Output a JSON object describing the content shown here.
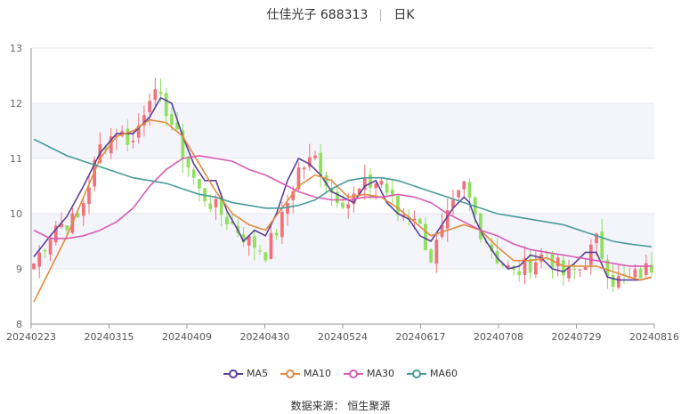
{
  "header": {
    "stock_name": "仕佳光子 688313",
    "period": "日K"
  },
  "footer": {
    "source": "数据来源： 恒生聚源"
  },
  "chart_data": {
    "type": "candlestick",
    "ylim": [
      8,
      13
    ],
    "yticks": [
      "8",
      "9",
      "10",
      "11",
      "12",
      "13"
    ],
    "xtick_labels": [
      "20240223",
      "20240315",
      "20240409",
      "20240430",
      "20240524",
      "20240617",
      "20240708",
      "20240729",
      "20240816"
    ],
    "up_color": "#f0717a",
    "down_color": "#8fe05a",
    "close_anchors": [
      [
        0,
        9.1
      ],
      [
        4,
        9.8
      ],
      [
        8,
        9.9
      ],
      [
        12,
        11.2
      ],
      [
        15,
        11.5
      ],
      [
        18,
        11.3
      ],
      [
        21,
        12.2
      ],
      [
        24,
        11.9
      ],
      [
        27,
        11.1
      ],
      [
        30,
        10.4
      ],
      [
        33,
        10.1
      ],
      [
        36,
        9.8
      ],
      [
        39,
        9.5
      ],
      [
        42,
        9.3
      ],
      [
        45,
        9.9
      ],
      [
        48,
        10.8
      ],
      [
        51,
        11.0
      ],
      [
        54,
        10.4
      ],
      [
        57,
        10.2
      ],
      [
        60,
        10.5
      ],
      [
        63,
        10.6
      ],
      [
        66,
        10.0
      ],
      [
        69,
        10.0
      ],
      [
        72,
        9.2
      ],
      [
        75,
        9.9
      ],
      [
        78,
        10.5
      ],
      [
        81,
        9.7
      ],
      [
        84,
        9.2
      ],
      [
        87,
        8.9
      ],
      [
        90,
        9.1
      ],
      [
        93,
        9.3
      ],
      [
        96,
        8.9
      ],
      [
        99,
        9.0
      ],
      [
        102,
        9.5
      ],
      [
        105,
        8.8
      ],
      [
        108,
        8.8
      ],
      [
        112,
        9.05
      ]
    ],
    "series": [
      {
        "name": "MA5",
        "color": "#5a3f9a",
        "points": [
          [
            0,
            9.22
          ],
          [
            3,
            9.6
          ],
          [
            6,
            9.95
          ],
          [
            9,
            10.5
          ],
          [
            12,
            11.1
          ],
          [
            15,
            11.45
          ],
          [
            18,
            11.45
          ],
          [
            21,
            11.75
          ],
          [
            23,
            12.1
          ],
          [
            25,
            12.0
          ],
          [
            27,
            11.4
          ],
          [
            29,
            10.9
          ],
          [
            31,
            10.6
          ],
          [
            33,
            10.6
          ],
          [
            35,
            10.05
          ],
          [
            37,
            9.7
          ],
          [
            38,
            9.5
          ],
          [
            40,
            9.7
          ],
          [
            42,
            9.6
          ],
          [
            44,
            10.0
          ],
          [
            46,
            10.6
          ],
          [
            48,
            11.0
          ],
          [
            50,
            10.9
          ],
          [
            52,
            10.7
          ],
          [
            54,
            10.4
          ],
          [
            56,
            10.3
          ],
          [
            58,
            10.2
          ],
          [
            60,
            10.5
          ],
          [
            62,
            10.6
          ],
          [
            64,
            10.2
          ],
          [
            66,
            10.0
          ],
          [
            68,
            9.9
          ],
          [
            70,
            9.6
          ],
          [
            72,
            9.5
          ],
          [
            74,
            9.8
          ],
          [
            76,
            10.1
          ],
          [
            78,
            10.3
          ],
          [
            79,
            10.2
          ],
          [
            80,
            9.9
          ],
          [
            82,
            9.5
          ],
          [
            84,
            9.2
          ],
          [
            86,
            9.0
          ],
          [
            88,
            9.05
          ],
          [
            90,
            9.25
          ],
          [
            92,
            9.2
          ],
          [
            94,
            9.0
          ],
          [
            96,
            8.95
          ],
          [
            98,
            9.1
          ],
          [
            100,
            9.3
          ],
          [
            102,
            9.3
          ],
          [
            104,
            8.85
          ],
          [
            106,
            8.8
          ],
          [
            108,
            8.8
          ],
          [
            110,
            8.8
          ],
          [
            112,
            8.85
          ]
        ]
      },
      {
        "name": "MA10",
        "color": "#e38a3f",
        "points": [
          [
            0,
            8.4
          ],
          [
            2,
            8.8
          ],
          [
            4,
            9.2
          ],
          [
            6,
            9.6
          ],
          [
            9,
            10.3
          ],
          [
            12,
            11.0
          ],
          [
            15,
            11.4
          ],
          [
            18,
            11.5
          ],
          [
            21,
            11.7
          ],
          [
            24,
            11.65
          ],
          [
            27,
            11.4
          ],
          [
            30,
            10.9
          ],
          [
            33,
            10.4
          ],
          [
            36,
            10.0
          ],
          [
            39,
            9.8
          ],
          [
            42,
            9.7
          ],
          [
            45,
            10.1
          ],
          [
            48,
            10.5
          ],
          [
            51,
            10.7
          ],
          [
            54,
            10.6
          ],
          [
            57,
            10.3
          ],
          [
            60,
            10.35
          ],
          [
            63,
            10.3
          ],
          [
            66,
            10.1
          ],
          [
            69,
            9.85
          ],
          [
            72,
            9.6
          ],
          [
            75,
            9.7
          ],
          [
            78,
            9.8
          ],
          [
            81,
            9.7
          ],
          [
            84,
            9.4
          ],
          [
            87,
            9.15
          ],
          [
            90,
            9.15
          ],
          [
            93,
            9.2
          ],
          [
            96,
            9.05
          ],
          [
            99,
            9.05
          ],
          [
            102,
            9.05
          ],
          [
            105,
            8.95
          ],
          [
            108,
            8.85
          ],
          [
            110,
            8.8
          ],
          [
            112,
            8.85
          ]
        ]
      },
      {
        "name": "MA30",
        "color": "#d95cb3",
        "points": [
          [
            0,
            9.7
          ],
          [
            3,
            9.55
          ],
          [
            6,
            9.55
          ],
          [
            9,
            9.6
          ],
          [
            12,
            9.7
          ],
          [
            15,
            9.85
          ],
          [
            18,
            10.1
          ],
          [
            21,
            10.5
          ],
          [
            24,
            10.8
          ],
          [
            27,
            11.0
          ],
          [
            30,
            11.05
          ],
          [
            33,
            11.0
          ],
          [
            36,
            10.95
          ],
          [
            39,
            10.8
          ],
          [
            42,
            10.7
          ],
          [
            45,
            10.55
          ],
          [
            48,
            10.4
          ],
          [
            51,
            10.3
          ],
          [
            54,
            10.25
          ],
          [
            57,
            10.25
          ],
          [
            60,
            10.3
          ],
          [
            63,
            10.3
          ],
          [
            66,
            10.35
          ],
          [
            69,
            10.3
          ],
          [
            72,
            10.2
          ],
          [
            75,
            10.0
          ],
          [
            78,
            9.85
          ],
          [
            81,
            9.7
          ],
          [
            84,
            9.6
          ],
          [
            87,
            9.45
          ],
          [
            90,
            9.35
          ],
          [
            93,
            9.3
          ],
          [
            96,
            9.25
          ],
          [
            99,
            9.2
          ],
          [
            102,
            9.15
          ],
          [
            105,
            9.1
          ],
          [
            108,
            9.05
          ],
          [
            112,
            9.05
          ]
        ]
      },
      {
        "name": "MA60",
        "color": "#4a9a9a",
        "points": [
          [
            0,
            11.35
          ],
          [
            3,
            11.2
          ],
          [
            6,
            11.05
          ],
          [
            9,
            10.95
          ],
          [
            12,
            10.85
          ],
          [
            15,
            10.75
          ],
          [
            18,
            10.65
          ],
          [
            21,
            10.6
          ],
          [
            24,
            10.55
          ],
          [
            27,
            10.45
          ],
          [
            30,
            10.35
          ],
          [
            33,
            10.3
          ],
          [
            36,
            10.2
          ],
          [
            39,
            10.15
          ],
          [
            42,
            10.1
          ],
          [
            45,
            10.1
          ],
          [
            48,
            10.15
          ],
          [
            51,
            10.25
          ],
          [
            54,
            10.45
          ],
          [
            57,
            10.6
          ],
          [
            60,
            10.65
          ],
          [
            63,
            10.65
          ],
          [
            66,
            10.6
          ],
          [
            69,
            10.5
          ],
          [
            72,
            10.4
          ],
          [
            75,
            10.3
          ],
          [
            78,
            10.2
          ],
          [
            81,
            10.1
          ],
          [
            84,
            10.0
          ],
          [
            87,
            9.95
          ],
          [
            90,
            9.9
          ],
          [
            93,
            9.85
          ],
          [
            96,
            9.8
          ],
          [
            99,
            9.7
          ],
          [
            102,
            9.6
          ],
          [
            105,
            9.5
          ],
          [
            108,
            9.45
          ],
          [
            112,
            9.4
          ]
        ]
      }
    ]
  }
}
